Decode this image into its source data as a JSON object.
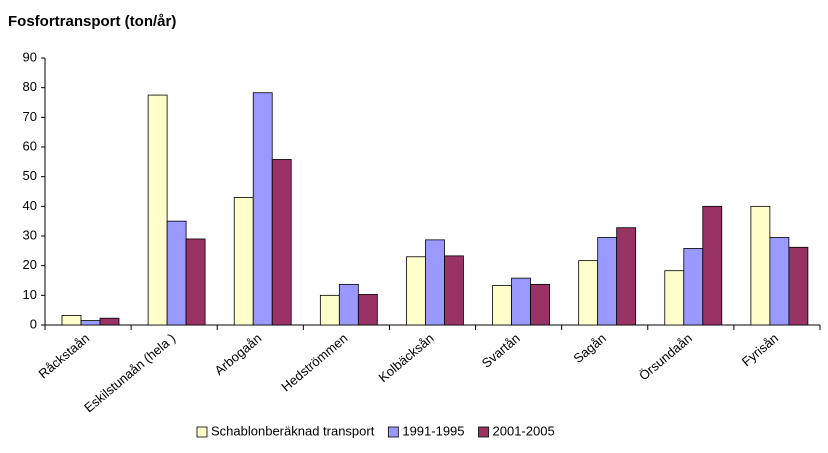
{
  "chart_data": {
    "type": "bar",
    "title": "Fosfortransport (ton/år)",
    "categories": [
      "Råckstaån",
      "Eskilstunaån (hela )",
      "Arbogaån",
      "Hedströmmen",
      "Kolbäcksån",
      "Svartån",
      "Sagån",
      "Örsundaån",
      "Fyrisån"
    ],
    "series": [
      {
        "name": "Schablonberäknad transport",
        "color": "#ffffcc",
        "values": [
          3.2,
          77.5,
          43,
          10,
          23,
          13.3,
          21.7,
          18.3,
          40
        ]
      },
      {
        "name": "1991-1995",
        "color": "#9999ff",
        "values": [
          1.5,
          35,
          78.3,
          13.7,
          28.7,
          15.8,
          29.5,
          25.8,
          29.5
        ]
      },
      {
        "name": "2001-2005",
        "color": "#993366",
        "values": [
          2.3,
          29,
          55.8,
          10.3,
          23.3,
          13.7,
          32.8,
          40,
          26.2
        ]
      }
    ],
    "ylim": [
      0,
      90
    ],
    "yticks": [
      0,
      10,
      20,
      30,
      40,
      50,
      60,
      70,
      80,
      90
    ],
    "legend": "bottom"
  }
}
